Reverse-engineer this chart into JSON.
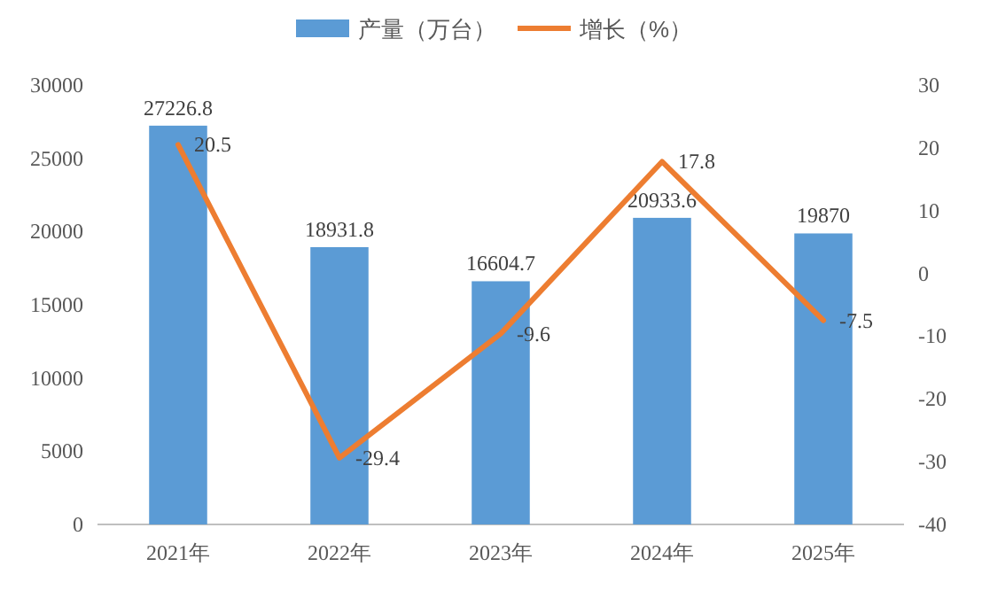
{
  "chart_data": {
    "type": "bar",
    "categories": [
      "2021年",
      "2022年",
      "2023年",
      "2024年",
      "2025年"
    ],
    "series": [
      {
        "name": "产量（万台）",
        "color": "#5b9bd5",
        "values": [
          27226.8,
          18931.8,
          16604.7,
          20933.6,
          19870
        ]
      },
      {
        "name": "增长（%）",
        "type": "line",
        "axis": "y2",
        "color": "#ed7d31",
        "values": [
          20.5,
          -29.4,
          -9.6,
          17.8,
          -7.5
        ]
      }
    ],
    "ylim": [
      0,
      30000
    ],
    "yticks": [
      0,
      5000,
      10000,
      15000,
      20000,
      25000,
      30000
    ],
    "y2lim": [
      -40,
      30
    ],
    "y2ticks": [
      -40,
      -30,
      -20,
      -10,
      0,
      10,
      20,
      30
    ],
    "data_labels": true,
    "legend": "top",
    "grid": false,
    "marker": "none",
    "line_style": "solid"
  }
}
